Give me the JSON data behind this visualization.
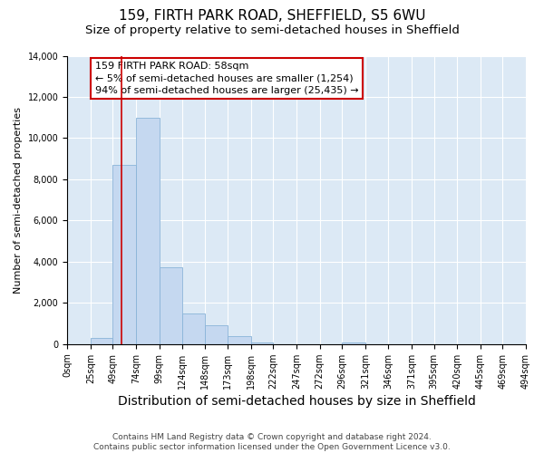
{
  "title1": "159, FIRTH PARK ROAD, SHEFFIELD, S5 6WU",
  "title2": "Size of property relative to semi-detached houses in Sheffield",
  "xlabel": "Distribution of semi-detached houses by size in Sheffield",
  "ylabel": "Number of semi-detached properties",
  "bar_color": "#c5d8f0",
  "bar_edge_color": "#8ab4d8",
  "plot_bg_color": "#dce9f5",
  "fig_bg_color": "#ffffff",
  "grid_color": "#ffffff",
  "annotation_text": "159 FIRTH PARK ROAD: 58sqm\n← 5% of semi-detached houses are smaller (1,254)\n94% of semi-detached houses are larger (25,435) →",
  "property_size": 58,
  "vline_color": "#cc0000",
  "ylim": [
    0,
    14000
  ],
  "yticks": [
    0,
    2000,
    4000,
    6000,
    8000,
    10000,
    12000,
    14000
  ],
  "bin_edges": [
    0,
    25,
    49,
    74,
    99,
    124,
    148,
    173,
    198,
    222,
    247,
    272,
    296,
    321,
    346,
    371,
    395,
    420,
    445,
    469,
    494
  ],
  "bar_heights": [
    0,
    300,
    8700,
    11000,
    3750,
    1500,
    900,
    400,
    100,
    0,
    0,
    0,
    100,
    0,
    0,
    0,
    0,
    0,
    0,
    0
  ],
  "footer_text": "Contains HM Land Registry data © Crown copyright and database right 2024.\nContains public sector information licensed under the Open Government Licence v3.0.",
  "title1_fontsize": 11,
  "title2_fontsize": 9.5,
  "xlabel_fontsize": 10,
  "ylabel_fontsize": 8,
  "tick_fontsize": 7,
  "annotation_fontsize": 8,
  "footer_fontsize": 6.5
}
